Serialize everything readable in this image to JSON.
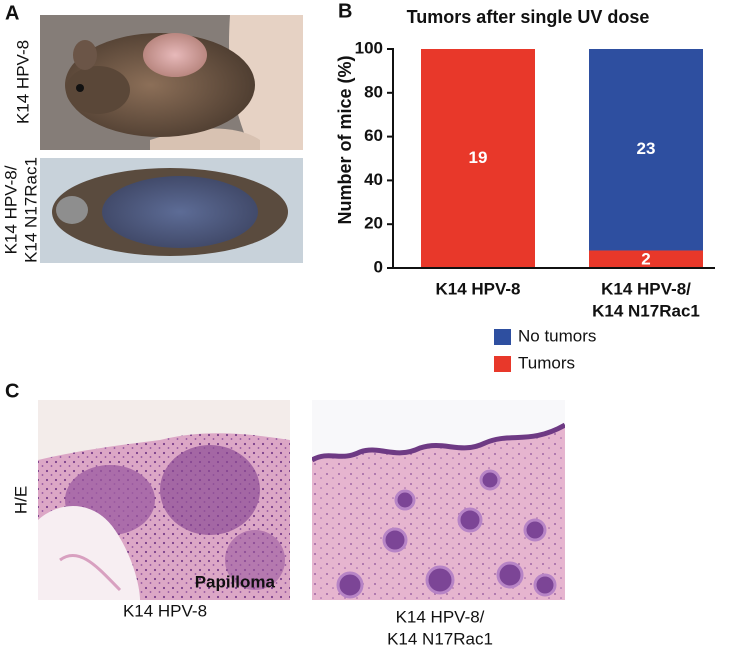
{
  "panel_a": {
    "label": "A",
    "photos": [
      {
        "caption": [
          "K14 HPV-8"
        ]
      },
      {
        "caption": [
          "K14 HPV-8/",
          "K14 N17Rac1"
        ]
      }
    ]
  },
  "chart_data": {
    "type": "bar",
    "stacked": true,
    "panel_label": "B",
    "title": "Tumors after single UV dose",
    "y_label": "Number of mice (%)",
    "categories": [
      [
        "K14 HPV-8"
      ],
      [
        "K14 HPV-8/",
        "K14 N17Rac1"
      ]
    ],
    "series": [
      {
        "name": "No tumors",
        "color": "#2e4fa0",
        "values": [
          0,
          92
        ],
        "counts": [
          null,
          23
        ]
      },
      {
        "name": "Tumors",
        "color": "#e8382a",
        "values": [
          100,
          8
        ],
        "counts": [
          19,
          2
        ]
      }
    ],
    "ylim": [
      0,
      100
    ],
    "yticks": [
      0,
      20,
      40,
      60,
      80,
      100
    ]
  },
  "panel_c": {
    "label": "C",
    "stain": "H/E",
    "images": [
      {
        "annotation": "Papilloma",
        "caption": [
          "K14 HPV-8"
        ]
      },
      {
        "caption": [
          "K14 HPV-8/",
          "K14 N17Rac1"
        ]
      }
    ]
  }
}
